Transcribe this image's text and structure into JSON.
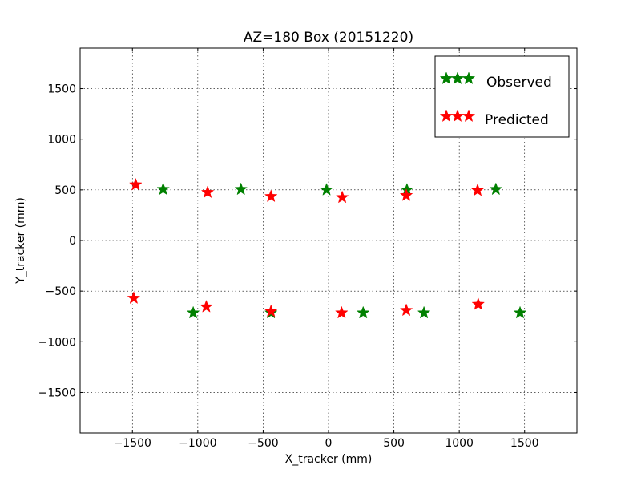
{
  "chart_data": {
    "type": "scatter",
    "title": "AZ=180 Box (20151220)",
    "xlabel": "X_tracker (mm)",
    "ylabel": "Y_tracker (mm)",
    "xlim": [
      -1900,
      1900
    ],
    "ylim": [
      -1900,
      1900
    ],
    "xticks": [
      -1500,
      -1000,
      -500,
      0,
      500,
      1000,
      1500
    ],
    "yticks": [
      -1500,
      -1000,
      -500,
      0,
      500,
      1000,
      1500
    ],
    "grid": true,
    "legend_position": "upper-right",
    "series": [
      {
        "name": "Observed",
        "color": "#008000",
        "marker": "star",
        "points": [
          [
            -1265,
            505
          ],
          [
            -670,
            505
          ],
          [
            -15,
            500
          ],
          [
            600,
            500
          ],
          [
            1280,
            505
          ],
          [
            -1035,
            -715
          ],
          [
            -440,
            -715
          ],
          [
            265,
            -715
          ],
          [
            730,
            -715
          ],
          [
            1465,
            -715
          ]
        ]
      },
      {
        "name": "Predicted",
        "color": "#ff0000",
        "marker": "star",
        "points": [
          [
            -1475,
            550
          ],
          [
            -925,
            475
          ],
          [
            -440,
            435
          ],
          [
            105,
            425
          ],
          [
            595,
            445
          ],
          [
            1140,
            495
          ],
          [
            -1490,
            -570
          ],
          [
            -935,
            -655
          ],
          [
            -440,
            -700
          ],
          [
            100,
            -715
          ],
          [
            595,
            -690
          ],
          [
            1145,
            -630
          ]
        ]
      }
    ]
  }
}
